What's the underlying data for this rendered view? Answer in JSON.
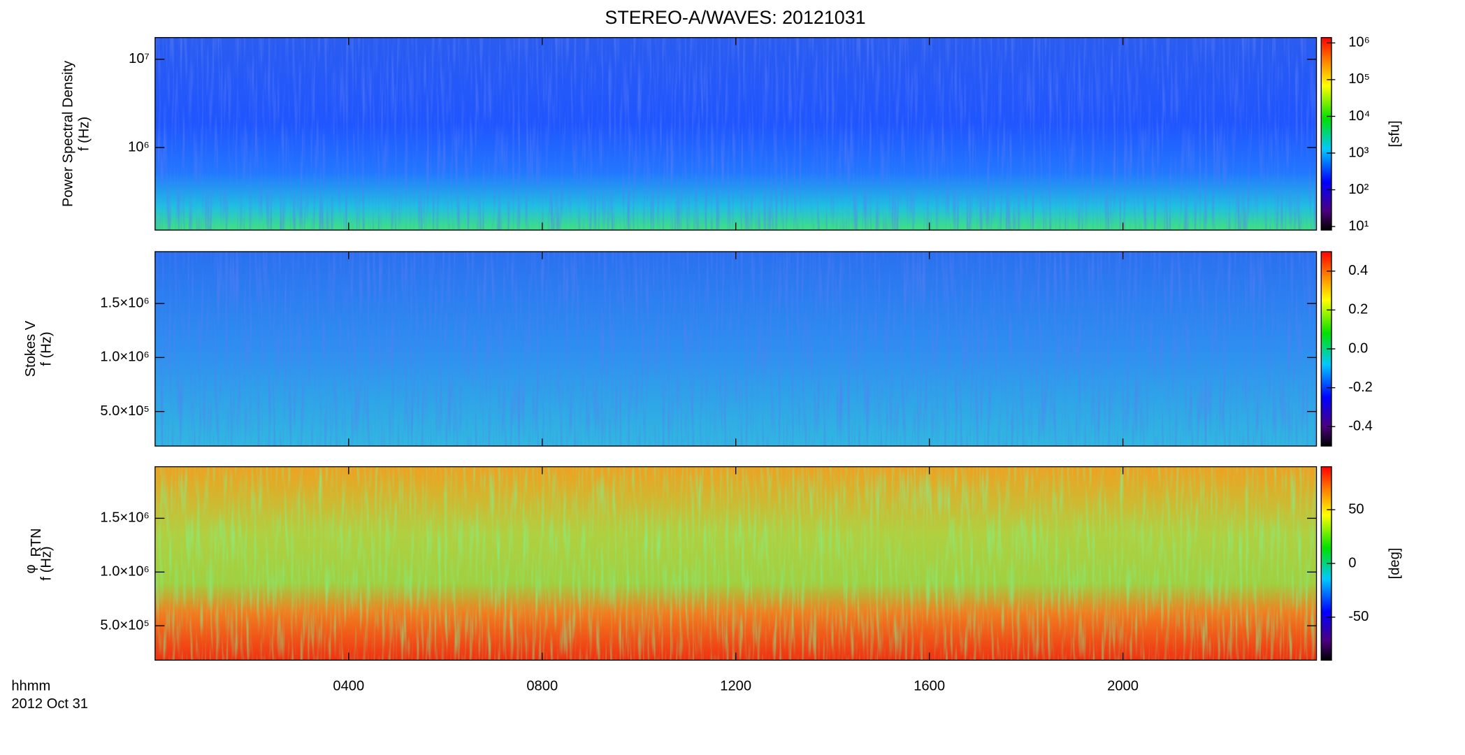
{
  "title": "STEREO-A/WAVES: 20121031",
  "xaxis": {
    "label": "hhmm",
    "date": "2012 Oct 31",
    "xlim": [
      0,
      24
    ],
    "xticks": [
      {
        "value": 4,
        "label": "0400"
      },
      {
        "value": 8,
        "label": "0800"
      },
      {
        "value": 12,
        "label": "1200"
      },
      {
        "value": 16,
        "label": "1600"
      },
      {
        "value": 20,
        "label": "2000"
      }
    ]
  },
  "chart_data": [
    {
      "type": "heatmap",
      "ylabel": [
        "Power Spectral Density",
        "f (Hz)"
      ],
      "ylog": true,
      "ylim": [
        116000,
        17600000
      ],
      "yticks": [
        {
          "value": 1000000,
          "label": "10⁶"
        },
        {
          "value": 10000000,
          "label": "10⁷"
        }
      ],
      "zlog": true,
      "zlim": [
        8,
        1400000
      ],
      "zticks": [
        {
          "value": 10,
          "label": "10¹"
        },
        {
          "value": 100,
          "label": "10²"
        },
        {
          "value": 1000,
          "label": "10³"
        },
        {
          "value": 10000,
          "label": "10⁴"
        },
        {
          "value": 100000,
          "label": "10⁵"
        },
        {
          "value": 1000000,
          "label": "10⁶"
        }
      ],
      "colorbar_label": "[sfu]"
    },
    {
      "type": "heatmap",
      "ylabel": [
        "Stokes V",
        "f (Hz)"
      ],
      "ylog": false,
      "ylim": [
        180000,
        1980000
      ],
      "yticks": [
        {
          "value": 500000,
          "label": "5.0×10⁵"
        },
        {
          "value": 1000000,
          "label": "1.0×10⁶"
        },
        {
          "value": 1500000,
          "label": "1.5×10⁶"
        }
      ],
      "zlog": false,
      "zlim": [
        -0.5,
        0.5
      ],
      "zticks": [
        -0.4,
        -0.2,
        {
          "value": 0,
          "label": "0.0"
        },
        0.2,
        0.4
      ]
    },
    {
      "type": "heatmap",
      "ylabel": [
        "φ",
        "f (Hz)"
      ],
      "ylabel_sub": "RTN",
      "ylog": false,
      "ylim": [
        180000,
        1980000
      ],
      "yticks": [
        {
          "value": 500000,
          "label": "5.0×10⁵"
        },
        {
          "value": 1000000,
          "label": "1.0×10⁶"
        },
        {
          "value": 1500000,
          "label": "1.5×10⁶"
        }
      ],
      "zlog": false,
      "zlim": [
        -90,
        90
      ],
      "zticks": [
        -50,
        0,
        50
      ],
      "colorbar_label": "[deg]"
    }
  ]
}
